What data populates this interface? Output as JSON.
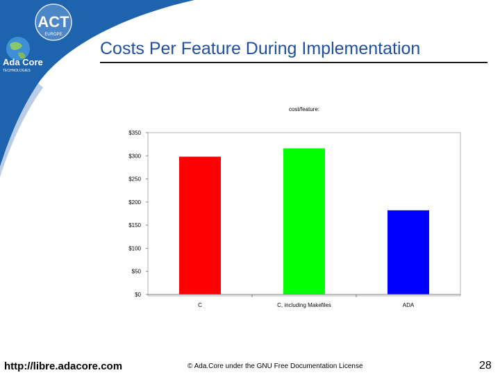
{
  "slide": {
    "title": "Costs Per Feature During Implementation",
    "logos": {
      "act_text": "ACT",
      "act_subtext": "EUROPE",
      "adacore_text": "Ada Core",
      "adacore_subtext": "TECHNOLOGIES"
    },
    "footer": {
      "url": "http://libre.adacore.com",
      "license": "© Ada.Core under the GNU Free Documentation License",
      "page_number": "28"
    },
    "colors": {
      "title": "#1f4fa0",
      "swoosh": "#1e63ad",
      "swoosh_light": "#b9cde6"
    }
  },
  "chart_data": {
    "type": "bar",
    "title": "cost/feature:",
    "xlabel": "",
    "ylabel": "",
    "ylim": [
      0,
      350
    ],
    "yticks": [
      0,
      50,
      100,
      150,
      200,
      250,
      300,
      350
    ],
    "ytick_labels": [
      "$0",
      "$50",
      "$100",
      "$150",
      "$200",
      "$250",
      "$300",
      "$350"
    ],
    "categories": [
      "C",
      "C, including Makefiles",
      "ADA"
    ],
    "values": [
      298,
      316,
      182
    ],
    "colors": [
      "#ff0000",
      "#00ff00",
      "#0000ff"
    ],
    "grid": false,
    "legend": "none"
  }
}
